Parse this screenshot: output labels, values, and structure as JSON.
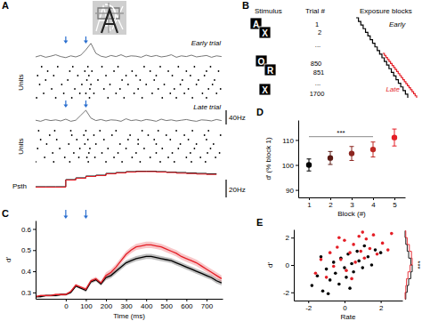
{
  "chart_data": [
    {
      "type": "raster",
      "title": "A",
      "ylabel": "Units",
      "tick_labels": false,
      "xlim": [
        -150,
        780
      ],
      "markers": [
        0,
        100
      ],
      "x": [
        -150,
        -125,
        -100,
        -75,
        -50,
        -25,
        0,
        25,
        50,
        75,
        100,
        125,
        150,
        175,
        200,
        225,
        250,
        275,
        300,
        325,
        350,
        375,
        400,
        425,
        450,
        475,
        500,
        525,
        550,
        575,
        600,
        625,
        650,
        675,
        700,
        725,
        750,
        775
      ],
      "scale_bar": {
        "value": 40,
        "label": "40Hz"
      },
      "trials": [
        {
          "name": "Early trial",
          "rate": [
            10,
            14,
            9,
            12,
            16,
            11,
            8,
            13,
            10,
            15,
            30,
            48,
            20,
            12,
            9,
            14,
            11,
            16,
            10,
            13,
            12,
            9,
            15,
            11,
            14,
            10,
            12,
            16,
            9,
            13,
            11,
            15,
            10,
            12,
            14,
            9,
            13,
            11
          ],
          "spikes": [
            [
              -120,
              -40,
              35,
              110,
              180,
              260,
              390,
              470,
              560,
              640,
              720
            ],
            [
              -90,
              20,
              95,
              130,
              240,
              330,
              420,
              510,
              600,
              700,
              760
            ],
            [
              -140,
              -60,
              60,
              115,
              200,
              300,
              350,
              450,
              530,
              620,
              690
            ],
            [
              -100,
              10,
              105,
              160,
              280,
              370,
              440,
              580,
              660,
              740
            ],
            [
              -130,
              -20,
              80,
              125,
              220,
              310,
              400,
              490,
              570,
              650,
              730
            ],
            [
              -70,
              45,
              120,
              190,
              270,
              360,
              460,
              540,
              610,
              710,
              770
            ],
            [
              -110,
              -10,
              70,
              100,
              140,
              250,
              340,
              430,
              520,
              590,
              680,
              750
            ],
            [
              -145,
              -50,
              30,
              118,
              210,
              290,
              380,
              480,
              550,
              630,
              700
            ]
          ]
        },
        {
          "name": "Late trial",
          "rate": [
            12,
            9,
            14,
            11,
            13,
            10,
            15,
            9,
            12,
            26,
            40,
            18,
            11,
            14,
            10,
            13,
            12,
            9,
            16,
            11,
            13,
            10,
            14,
            12,
            9,
            15,
            11,
            13,
            10,
            12,
            14,
            11,
            9,
            13,
            12,
            10,
            14,
            11
          ],
          "spikes": [
            [
              -135,
              -55,
              25,
              100,
              170,
              250,
              380,
              460,
              550,
              630,
              710
            ],
            [
              -80,
              30,
              90,
              140,
              230,
              320,
              410,
              500,
              590,
              690,
              770
            ],
            [
              -125,
              -45,
              55,
              110,
              190,
              310,
              360,
              440,
              520,
              610,
              700
            ],
            [
              -95,
              15,
              95,
              150,
              270,
              360,
              450,
              570,
              650,
              735
            ],
            [
              -140,
              -30,
              70,
              120,
              210,
              300,
              390,
              480,
              560,
              640,
              720
            ],
            [
              -65,
              40,
              115,
              180,
              260,
              350,
              450,
              530,
              620,
              705,
              765
            ],
            [
              -105,
              -5,
              65,
              105,
              145,
              240,
              330,
              420,
              510,
              600,
              670,
              745
            ],
            [
              -150,
              -60,
              20,
              112,
              200,
              280,
              370,
              470,
              540,
              625,
              695
            ]
          ]
        }
      ]
    },
    {
      "type": "step",
      "ylabel": "Psth",
      "tick_labels": false,
      "xlim": [
        -150,
        780
      ],
      "bins": [
        -150,
        -100,
        -50,
        0,
        50,
        100,
        150,
        200,
        250,
        300,
        350,
        400,
        450,
        500,
        550,
        600,
        650,
        700,
        750
      ],
      "scale_bar": {
        "value": 20,
        "label": "20Hz"
      },
      "series": [
        {
          "color": "#000000",
          "values": [
            12,
            12,
            12,
            20,
            22,
            24,
            25,
            27,
            28,
            29,
            29.5,
            29.5,
            29,
            28.5,
            28,
            27.5,
            27,
            26.5
          ]
        },
        {
          "color": "#e41e26",
          "values": [
            11.5,
            11.5,
            11.5,
            19.5,
            21.5,
            23.5,
            24.5,
            26.5,
            27.5,
            28.5,
            29,
            29,
            28.5,
            28,
            27.2,
            26.8,
            26.2,
            25.8
          ]
        }
      ]
    },
    {
      "type": "diagram",
      "title": "B",
      "headers": [
        "Stimulus",
        "Trial #",
        "Exposure blocks"
      ],
      "stimuli": [
        "A",
        "X",
        "O",
        "R",
        "X"
      ],
      "trial_numbers": [
        "1",
        "2",
        "...",
        "850",
        "851",
        "...",
        "1700"
      ],
      "blocks": [
        {
          "name": "Early",
          "color": "#000000"
        },
        {
          "name": "Late",
          "color": "#e41e26"
        }
      ]
    },
    {
      "type": "line",
      "title": "C",
      "xlabel": "Time (ms)",
      "ylabel": "d′",
      "markers": [
        0,
        100
      ],
      "xlim": [
        -150,
        780
      ],
      "ylim": [
        0.27,
        0.64
      ],
      "xticks": [
        0,
        100,
        200,
        300,
        400,
        500,
        600,
        700
      ],
      "yticks": [
        0.3,
        0.4,
        0.5,
        0.6
      ],
      "x": [
        -150,
        -125,
        -100,
        -75,
        -50,
        -25,
        0,
        25,
        50,
        75,
        100,
        125,
        150,
        175,
        200,
        225,
        250,
        275,
        300,
        325,
        350,
        375,
        400,
        425,
        450,
        475,
        500,
        525,
        550,
        575,
        600,
        625,
        650,
        675,
        700,
        725,
        750,
        775
      ],
      "series": [
        {
          "color": "#000000",
          "values": [
            0.28,
            0.28,
            0.285,
            0.285,
            0.285,
            0.29,
            0.29,
            0.3,
            0.33,
            0.32,
            0.31,
            0.35,
            0.36,
            0.34,
            0.37,
            0.38,
            0.4,
            0.42,
            0.44,
            0.45,
            0.46,
            0.465,
            0.47,
            0.47,
            0.465,
            0.46,
            0.455,
            0.45,
            0.44,
            0.43,
            0.42,
            0.41,
            0.4,
            0.39,
            0.38,
            0.37,
            0.355,
            0.345
          ],
          "errors": [
            0.005,
            0.005,
            0.005,
            0.005,
            0.005,
            0.005,
            0.005,
            0.005,
            0.005,
            0.005,
            0.008,
            0.008,
            0.008,
            0.008,
            0.012,
            0.012,
            0.012,
            0.012,
            0.012,
            0.012,
            0.012,
            0.012,
            0.012,
            0.012,
            0.012,
            0.012,
            0.012,
            0.012,
            0.012,
            0.012,
            0.012,
            0.012,
            0.012,
            0.012,
            0.012,
            0.012,
            0.012,
            0.012
          ]
        },
        {
          "color": "#e41e26",
          "values": [
            0.28,
            0.285,
            0.285,
            0.285,
            0.29,
            0.29,
            0.29,
            0.305,
            0.335,
            0.325,
            0.315,
            0.355,
            0.365,
            0.345,
            0.38,
            0.395,
            0.42,
            0.45,
            0.48,
            0.5,
            0.515,
            0.52,
            0.525,
            0.525,
            0.52,
            0.515,
            0.505,
            0.495,
            0.485,
            0.47,
            0.46,
            0.45,
            0.44,
            0.425,
            0.41,
            0.395,
            0.38,
            0.365
          ],
          "errors": [
            0.005,
            0.005,
            0.005,
            0.005,
            0.005,
            0.005,
            0.005,
            0.005,
            0.005,
            0.005,
            0.009,
            0.009,
            0.009,
            0.009,
            0.015,
            0.015,
            0.015,
            0.015,
            0.015,
            0.015,
            0.015,
            0.015,
            0.015,
            0.015,
            0.015,
            0.015,
            0.015,
            0.015,
            0.015,
            0.015,
            0.015,
            0.015,
            0.015,
            0.015,
            0.015,
            0.015,
            0.015,
            0.015
          ]
        }
      ]
    },
    {
      "type": "errorbar",
      "title": "D",
      "xlabel": "Block (#)",
      "ylabel": "d′ (% block 1)",
      "x": [
        1,
        2,
        3,
        4,
        5
      ],
      "values": [
        100,
        102.8,
        104.6,
        106.2,
        111
      ],
      "errors": [
        2.4,
        2.6,
        2.8,
        3.0,
        3.4
      ],
      "colors": [
        "#000000",
        "#5a1a14",
        "#8c2620",
        "#bf2a25",
        "#e41e26"
      ],
      "xlim": [
        0.5,
        5.5
      ],
      "ylim": [
        87,
        118
      ],
      "xticks": [
        1,
        2,
        3,
        4,
        5
      ],
      "yticks": [
        90,
        100,
        110
      ],
      "annotations": [
        {
          "text": "***",
          "x": [
            1,
            4
          ]
        }
      ]
    },
    {
      "type": "scatter",
      "title": "E",
      "xlabel": "Rate",
      "ylabel": "d′",
      "xlim": [
        -2.8,
        3.2
      ],
      "ylim": [
        -2.6,
        2.6
      ],
      "xticks": [
        -2,
        0,
        2
      ],
      "yticks": [
        -2,
        0,
        2
      ],
      "series": [
        {
          "color": "#000000",
          "x": [
            -1.8,
            -1.5,
            -1.2,
            -1.0,
            -0.8,
            -0.6,
            -0.5,
            -0.3,
            -0.2,
            0,
            0.1,
            0.2,
            0.4,
            0.5,
            0.7,
            0.8,
            1.0,
            1.1,
            1.3,
            1.5,
            1.7,
            -1.3,
            -0.9,
            0.3,
            2.0
          ],
          "values": [
            -1.5,
            -0.8,
            -1.9,
            -0.3,
            -1.1,
            0.2,
            -0.6,
            -1.4,
            0.5,
            -0.2,
            -0.9,
            0.8,
            0.1,
            -0.5,
            1.0,
            0.3,
            -0.2,
            1.4,
            0.6,
            0.0,
            1.1,
            0.6,
            -2.1,
            -1.7,
            0.9
          ]
        },
        {
          "color": "#e41e26",
          "x": [
            -1.6,
            -1.3,
            -1.0,
            -0.8,
            -0.6,
            -0.4,
            -0.2,
            0,
            0.1,
            0.3,
            0.5,
            0.6,
            0.8,
            0.9,
            1.1,
            1.2,
            1.4,
            1.6,
            1.8,
            2.1,
            2.4,
            -0.3,
            0.4,
            1.0,
            2.6
          ],
          "values": [
            -0.6,
            0.4,
            -0.9,
            0.9,
            -0.1,
            1.3,
            0.4,
            1.8,
            -0.4,
            0.9,
            1.5,
            0.2,
            2.1,
            1.0,
            0.5,
            1.9,
            1.2,
            2.2,
            0.8,
            1.6,
            1.1,
            2.0,
            -1.0,
            2.4,
            2.3
          ]
        }
      ],
      "histogram": {
        "bins": [
          -2.5,
          -2,
          -1.5,
          -1,
          -0.5,
          0,
          0.5,
          1,
          1.5,
          2,
          2.5
        ],
        "series": [
          {
            "color": "#000000",
            "counts": [
              1,
              3,
              5,
              8,
              10,
              8,
              5,
              3,
              1,
              0
            ]
          },
          {
            "color": "#e41e26",
            "counts": [
              0,
              1,
              2,
              4,
              7,
              10,
              9,
              6,
              3,
              1
            ]
          }
        ]
      },
      "annotations": [
        {
          "text": "***"
        }
      ]
    }
  ]
}
